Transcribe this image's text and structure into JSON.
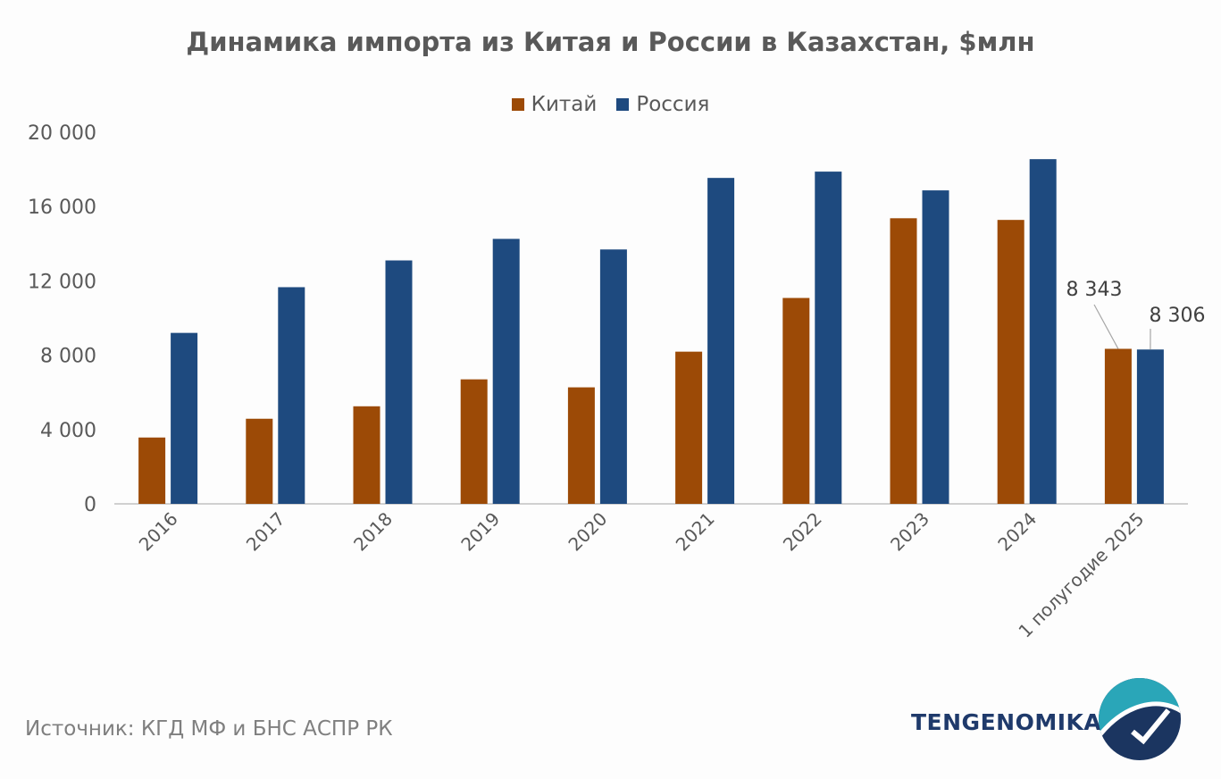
{
  "chart_data": {
    "type": "bar",
    "title": "Динамика импорта из Китая и России в Казахстан, $млн",
    "xlabel": "",
    "ylabel": "",
    "ylim": [
      0,
      20000
    ],
    "yticks": [
      0,
      4000,
      8000,
      12000,
      16000,
      20000
    ],
    "ytick_labels": [
      "0",
      "4 000",
      "8 000",
      "12 000",
      "16 000",
      "20 000"
    ],
    "grid": false,
    "legend_position": "top-center",
    "categories": [
      "2016",
      "2017",
      "2018",
      "2019",
      "2020",
      "2021",
      "2022",
      "2023",
      "2024",
      "1 полугодие 2025"
    ],
    "series": [
      {
        "name": "Китай",
        "color": "#9c4a06",
        "values": [
          3570,
          4580,
          5250,
          6700,
          6270,
          8190,
          11080,
          15370,
          15280,
          8343
        ]
      },
      {
        "name": "Россия",
        "color": "#1e4a7f",
        "values": [
          9200,
          11660,
          13100,
          14260,
          13690,
          17540,
          17880,
          16870,
          18550,
          8306
        ]
      }
    ],
    "data_labels": [
      {
        "series": 0,
        "index": 9,
        "text": "8 343"
      },
      {
        "series": 1,
        "index": 9,
        "text": "8 306"
      }
    ]
  },
  "footer": {
    "source": "Источник: КГД МФ и БНС АСПР РК",
    "brand": "TENGENOMIKA"
  }
}
